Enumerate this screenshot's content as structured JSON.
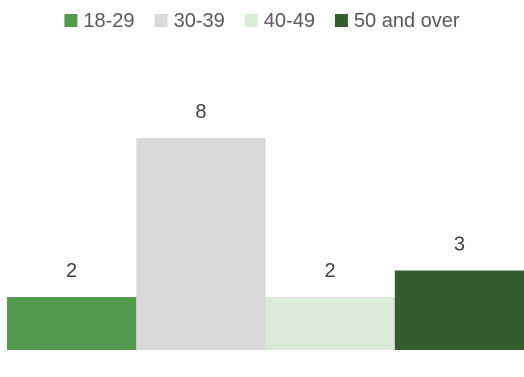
{
  "chart_data": {
    "type": "bar",
    "title": "",
    "xlabel": "",
    "ylabel": "",
    "ylim": [
      0,
      10
    ],
    "grid": false,
    "legend_position": "top",
    "series": [
      {
        "name": "18-29",
        "values": [
          2
        ],
        "color": "#549A4E"
      },
      {
        "name": "30-39",
        "values": [
          8
        ],
        "color": "#D9D9D9"
      },
      {
        "name": "40-49",
        "values": [
          2
        ],
        "color": "#DCEBD9"
      },
      {
        "name": "50 and over",
        "values": [
          3
        ],
        "color": "#345C2F"
      }
    ]
  }
}
